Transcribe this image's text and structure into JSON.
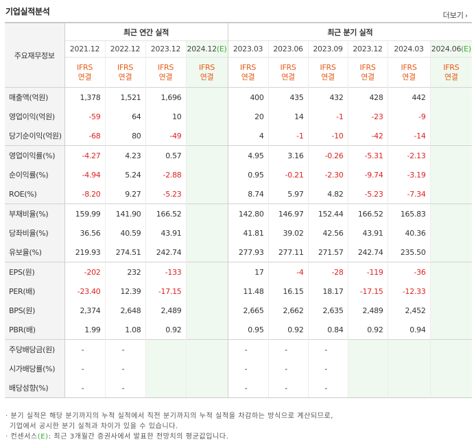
{
  "title": "기업실적분석",
  "more_label": "더보기",
  "more_arrow": "›",
  "row_header": "주요재무정보",
  "annual_group": "최근 연간 실적",
  "quarter_group": "최근 분기 실적",
  "periods": [
    "2021.12",
    "2022.12",
    "2023.12",
    "2024.12",
    "2023.03",
    "2023.06",
    "2023.09",
    "2023.12",
    "2024.03",
    "2024.06"
  ],
  "estimate_mark": "(E)",
  "ifrs_top": "IFRS",
  "ifrs_bottom": "연결",
  "rows": [
    {
      "label": "매출액(억원)",
      "values": [
        "1,378",
        "1,521",
        "1,696",
        "",
        "400",
        "435",
        "432",
        "428",
        "442",
        ""
      ]
    },
    {
      "label": "영업이익(억원)",
      "values": [
        "-59",
        "64",
        "10",
        "",
        "20",
        "14",
        "-1",
        "-23",
        "-9",
        ""
      ]
    },
    {
      "label": "당기순이익(억원)",
      "values": [
        "-68",
        "80",
        "-49",
        "",
        "4",
        "-1",
        "-10",
        "-42",
        "-14",
        ""
      ]
    },
    {
      "label": "영업이익률(%)",
      "values": [
        "-4.27",
        "4.23",
        "0.57",
        "",
        "4.95",
        "3.16",
        "-0.26",
        "-5.31",
        "-2.13",
        ""
      ]
    },
    {
      "label": "순이익률(%)",
      "values": [
        "-4.94",
        "5.24",
        "-2.88",
        "",
        "0.95",
        "-0.21",
        "-2.30",
        "-9.74",
        "-3.19",
        ""
      ]
    },
    {
      "label": "ROE(%)",
      "values": [
        "-8.20",
        "9.27",
        "-5.23",
        "",
        "8.74",
        "5.97",
        "4.82",
        "-5.23",
        "-7.34",
        ""
      ]
    },
    {
      "label": "부채비율(%)",
      "values": [
        "159.99",
        "141.90",
        "166.52",
        "",
        "142.80",
        "146.97",
        "152.44",
        "166.52",
        "165.83",
        ""
      ]
    },
    {
      "label": "당좌비율(%)",
      "values": [
        "36.56",
        "40.59",
        "43.91",
        "",
        "41.81",
        "39.02",
        "42.56",
        "43.91",
        "40.36",
        ""
      ]
    },
    {
      "label": "유보율(%)",
      "values": [
        "219.93",
        "274.51",
        "242.74",
        "",
        "277.93",
        "277.11",
        "271.57",
        "242.74",
        "235.50",
        ""
      ]
    },
    {
      "label": "EPS(원)",
      "values": [
        "-202",
        "232",
        "-133",
        "",
        "17",
        "-4",
        "-28",
        "-119",
        "-36",
        ""
      ]
    },
    {
      "label": "PER(배)",
      "values": [
        "-23.40",
        "12.39",
        "-17.15",
        "",
        "11.48",
        "16.15",
        "18.17",
        "-17.15",
        "-12.33",
        ""
      ]
    },
    {
      "label": "BPS(원)",
      "values": [
        "2,374",
        "2,648",
        "2,489",
        "",
        "2,665",
        "2,662",
        "2,635",
        "2,489",
        "2,452",
        ""
      ]
    },
    {
      "label": "PBR(배)",
      "values": [
        "1.99",
        "1.08",
        "0.92",
        "",
        "0.95",
        "0.92",
        "0.84",
        "0.92",
        "0.94",
        ""
      ]
    },
    {
      "label": "주당배당금(원)",
      "values": [
        "-",
        "-",
        "",
        "",
        "-",
        "-",
        "-",
        "",
        "",
        ""
      ]
    },
    {
      "label": "시가배당률(%)",
      "values": [
        "-",
        "-",
        "",
        "",
        "-",
        "-",
        "-",
        "",
        "",
        ""
      ]
    },
    {
      "label": "배당성향(%)",
      "values": [
        "-",
        "-",
        "",
        "",
        "-",
        "-",
        "-",
        "",
        "",
        ""
      ]
    }
  ],
  "notes": [
    "· 분기 실적은 해당 분기까지의 누적 실적에서 직전 분기까지의 누적 실적을 차감하는 방식으로 계산되므로,",
    "  기업에서 공시한 분기 실적과 차이가 있을 수 있습니다.",
    "· 컨센서스",
    ": 최근 3개월간 증권사에서 발표한 전망치의 평균값입니다."
  ],
  "colors": {
    "negative": "#e02020",
    "ifrs": "#e55a18",
    "estimate_bg": "#f0f9ef",
    "estimate_mark": "#3aa63a"
  }
}
